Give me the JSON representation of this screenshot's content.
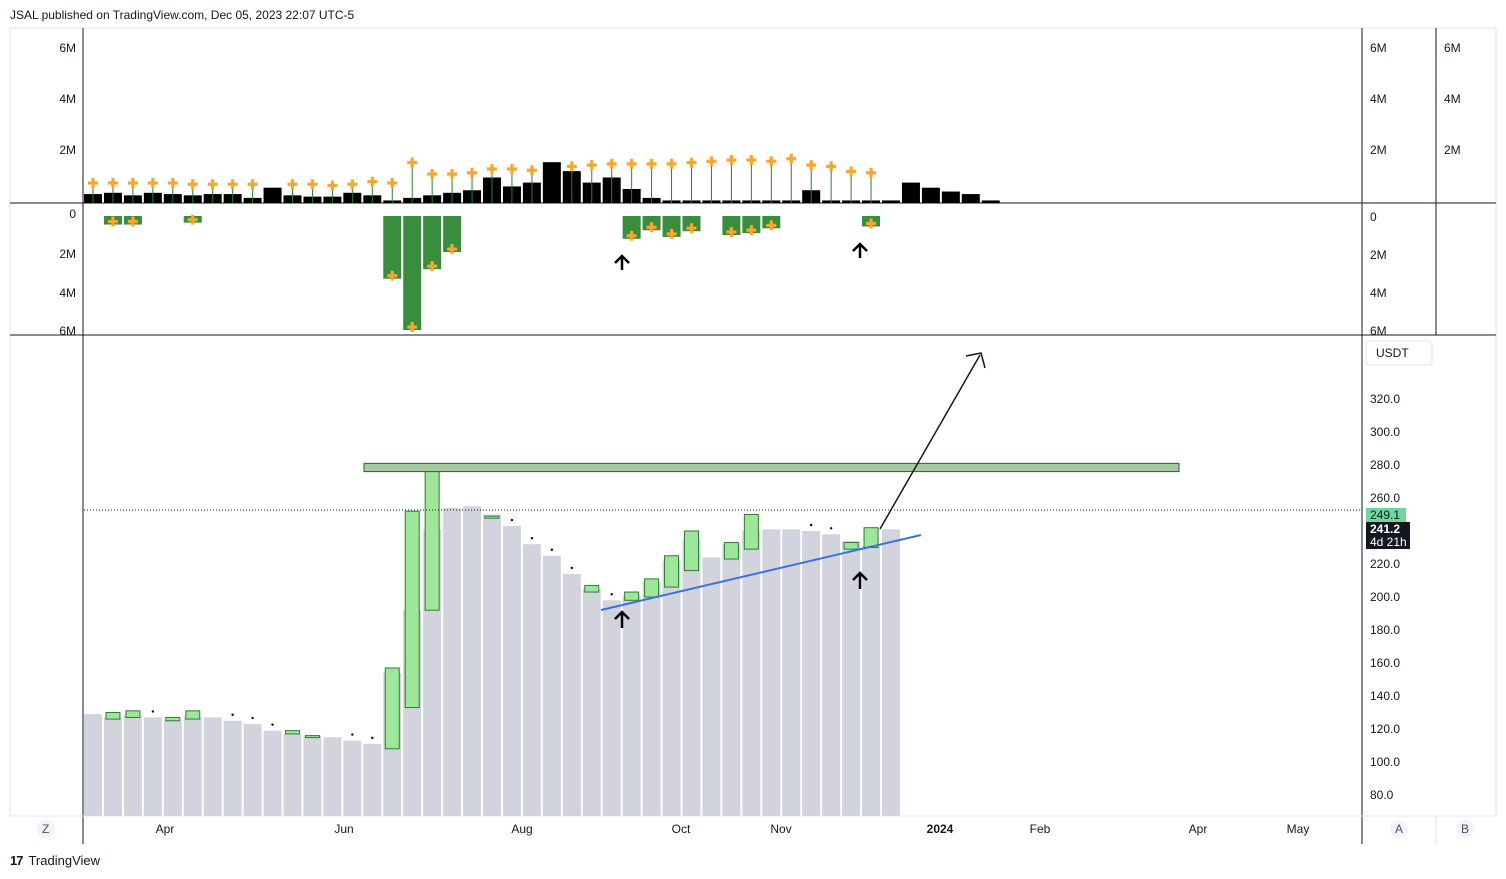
{
  "header": {
    "published": "JSAL published on TradingView.com, Dec 05, 2023 22:07 UTC-5"
  },
  "footer": {
    "logo_glyph": "17",
    "brand": "TradingView"
  },
  "price_axis": {
    "currency_label": "USDT",
    "last_price": "249.1",
    "current_price": "241.2",
    "countdown": "4d 21h"
  },
  "bottom_bar": {
    "left_btn": "Z",
    "auto_btn": "A",
    "b_btn": "B"
  },
  "colors": {
    "bar_fill": "#d1d4dc",
    "candle_green": "#9de69a",
    "candle_border": "#2e7d32",
    "vol_dark_green": "#388e3c",
    "volume_black": "#000000",
    "marker_orange": "#f7a62e",
    "trendline": "#3c6fe0",
    "resistance_zone": "#a5c9a0",
    "last_price_tag": "#6fd6a0"
  },
  "chart_data": [
    {
      "panel": "upper-volume",
      "type": "bar",
      "y_ticks": [
        "6M",
        "4M",
        "2M"
      ],
      "right_ticks_1": [
        "6M",
        "4M",
        "2M"
      ],
      "right_ticks_2": [
        "6M",
        "4M",
        "2M"
      ],
      "ylim": [
        0,
        6000000
      ],
      "values_millions": [
        0.35,
        0.4,
        0.3,
        0.4,
        0.35,
        0.3,
        0.35,
        0.35,
        0.2,
        0.6,
        0.3,
        0.25,
        0.25,
        0.4,
        0.3,
        0.1,
        0.2,
        0.3,
        0.4,
        0.5,
        1.0,
        0.65,
        0.8,
        1.6,
        1.25,
        0.8,
        1.0,
        0.55,
        0.2,
        0.1,
        0.1,
        0.1,
        0.1,
        0.1,
        0.1,
        0.1,
        0.5,
        0.1,
        0.1,
        0.1,
        0.1,
        0.8,
        0.6,
        0.45,
        0.35,
        0.1
      ]
    },
    {
      "panel": "lower-volume",
      "type": "bar",
      "y_ticks": [
        "0",
        "2M",
        "4M",
        "6M"
      ],
      "right_ticks": [
        "0",
        "2M",
        "4M",
        "6M"
      ],
      "ylim": [
        0,
        6000000
      ],
      "inverted": true,
      "bars_millions": [
        {
          "i": 1,
          "v": 0.45
        },
        {
          "i": 2,
          "v": 0.45
        },
        {
          "i": 5,
          "v": 0.35
        },
        {
          "i": 15,
          "v": 3.3
        },
        {
          "i": 16,
          "v": 6.0
        },
        {
          "i": 17,
          "v": 2.8
        },
        {
          "i": 18,
          "v": 1.9
        },
        {
          "i": 27,
          "v": 1.2
        },
        {
          "i": 28,
          "v": 0.75
        },
        {
          "i": 29,
          "v": 1.1
        },
        {
          "i": 30,
          "v": 0.8
        },
        {
          "i": 32,
          "v": 1.0
        },
        {
          "i": 33,
          "v": 0.9
        },
        {
          "i": 34,
          "v": 0.65
        },
        {
          "i": 39,
          "v": 0.55
        }
      ]
    },
    {
      "panel": "price",
      "type": "bar",
      "y_ticks": [
        "320.0",
        "300.0",
        "280.0",
        "260.0",
        "240.0",
        "220.0",
        "200.0",
        "180.0",
        "160.0",
        "140.0",
        "120.0",
        "100.0",
        "80.0"
      ],
      "ylim": [
        72,
        330
      ],
      "x_ticks": [
        "Apr",
        "Jun",
        "Aug",
        "Oct",
        "Nov",
        "2024",
        "Feb",
        "Apr",
        "May"
      ],
      "closes": [
        129,
        127,
        128,
        127,
        125,
        127,
        127,
        125,
        123,
        119,
        117,
        116,
        115,
        113,
        111,
        154,
        192,
        241,
        254,
        255,
        250,
        243,
        232,
        225,
        214,
        205,
        198,
        201,
        209,
        222,
        235,
        224,
        232,
        240,
        241,
        241,
        240,
        238,
        234,
        231,
        241
      ],
      "candles": [
        {
          "i": 1,
          "low": 126,
          "high": 130
        },
        {
          "i": 2,
          "low": 127,
          "high": 131
        },
        {
          "i": 4,
          "low": 125,
          "high": 127
        },
        {
          "i": 5,
          "low": 126,
          "high": 131
        },
        {
          "i": 10,
          "low": 117,
          "high": 119
        },
        {
          "i": 11,
          "low": 115,
          "high": 116
        },
        {
          "i": 15,
          "low": 108,
          "high": 157
        },
        {
          "i": 16,
          "low": 133,
          "high": 252
        },
        {
          "i": 17,
          "low": 192,
          "high": 280
        },
        {
          "i": 20,
          "low": 248,
          "high": 249
        },
        {
          "i": 25,
          "low": 203,
          "high": 207
        },
        {
          "i": 27,
          "low": 198,
          "high": 203
        },
        {
          "i": 28,
          "low": 200,
          "high": 211
        },
        {
          "i": 29,
          "low": 206,
          "high": 225
        },
        {
          "i": 30,
          "low": 216,
          "high": 240
        },
        {
          "i": 32,
          "low": 223,
          "high": 233
        },
        {
          "i": 33,
          "low": 229,
          "high": 250
        },
        {
          "i": 38,
          "low": 229,
          "high": 233
        },
        {
          "i": 39,
          "low": 230,
          "high": 242
        }
      ],
      "resistance_zone": [
        276,
        281
      ],
      "last_price": 249.1,
      "current_price": 241.2
    }
  ]
}
